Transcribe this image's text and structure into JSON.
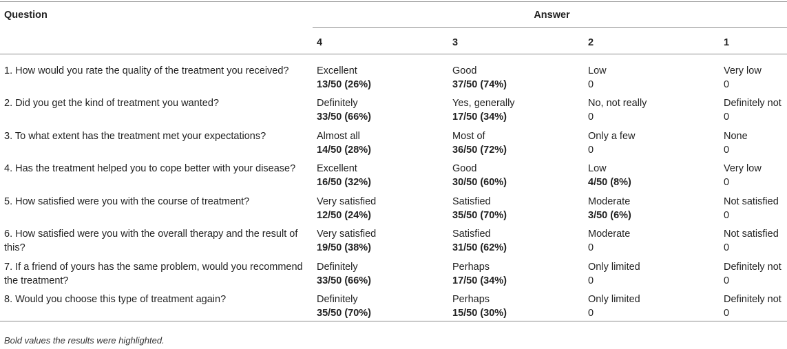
{
  "header": {
    "question": "Question",
    "answer": "Answer",
    "scores": [
      "4",
      "3",
      "2",
      "1"
    ]
  },
  "rows": [
    {
      "question": "1. How would you rate the quality of the treatment you received?",
      "answers": [
        {
          "label": "Excellent",
          "count": "13/50 (26%)",
          "bold": true
        },
        {
          "label": "Good",
          "count": "37/50 (74%)",
          "bold": true
        },
        {
          "label": "Low",
          "count": "0",
          "bold": false
        },
        {
          "label": "Very low",
          "count": "0",
          "bold": false
        }
      ]
    },
    {
      "question": "2. Did you get the kind of treatment you wanted?",
      "answers": [
        {
          "label": "Definitely",
          "count": "33/50 (66%)",
          "bold": true
        },
        {
          "label": "Yes, generally",
          "count": "17/50 (34%)",
          "bold": true
        },
        {
          "label": "No, not really",
          "count": "0",
          "bold": false
        },
        {
          "label": "Definitely not",
          "count": "0",
          "bold": false
        }
      ]
    },
    {
      "question": "3. To what extent has the treatment met your expectations?",
      "answers": [
        {
          "label": "Almost all",
          "count": "14/50 (28%)",
          "bold": true
        },
        {
          "label": "Most of",
          "count": "36/50 (72%)",
          "bold": true
        },
        {
          "label": "Only a few",
          "count": "0",
          "bold": false
        },
        {
          "label": "None",
          "count": "0",
          "bold": false
        }
      ]
    },
    {
      "question": "4. Has the treatment helped you to cope better with your disease?",
      "answers": [
        {
          "label": "Excellent",
          "count": "16/50 (32%)",
          "bold": true
        },
        {
          "label": "Good",
          "count": "30/50 (60%)",
          "bold": true
        },
        {
          "label": "Low",
          "count": "4/50 (8%)",
          "bold": true
        },
        {
          "label": "Very low",
          "count": "0",
          "bold": false
        }
      ]
    },
    {
      "question": "5. How satisfied were you with the course of treatment?",
      "answers": [
        {
          "label": "Very satisfied",
          "count": "12/50 (24%)",
          "bold": true
        },
        {
          "label": "Satisfied",
          "count": "35/50 (70%)",
          "bold": true
        },
        {
          "label": "Moderate",
          "count": "3/50 (6%)",
          "bold": true
        },
        {
          "label": "Not satisfied",
          "count": "0",
          "bold": false
        }
      ]
    },
    {
      "question": "6. How satisfied were you with the overall therapy and the result of this?",
      "answers": [
        {
          "label": "Very satisfied",
          "count": "19/50 (38%)",
          "bold": true
        },
        {
          "label": "Satisfied",
          "count": "31/50 (62%)",
          "bold": true
        },
        {
          "label": "Moderate",
          "count": "0",
          "bold": false
        },
        {
          "label": "Not satisfied",
          "count": "0",
          "bold": false
        }
      ]
    },
    {
      "question": "7. If a friend of yours has the same problem, would you recommend the treatment?",
      "answers": [
        {
          "label": "Definitely",
          "count": "33/50 (66%)",
          "bold": true
        },
        {
          "label": "Perhaps",
          "count": "17/50 (34%)",
          "bold": true
        },
        {
          "label": "Only limited",
          "count": "0",
          "bold": false
        },
        {
          "label": "Definitely not",
          "count": "0",
          "bold": false
        }
      ]
    },
    {
      "question": "8. Would you choose this type of treatment again?",
      "answers": [
        {
          "label": "Definitely",
          "count": "35/50 (70%)",
          "bold": true
        },
        {
          "label": "Perhaps",
          "count": "15/50 (30%)",
          "bold": true
        },
        {
          "label": "Only limited",
          "count": "0",
          "bold": false
        },
        {
          "label": "Definitely not",
          "count": "0",
          "bold": false
        }
      ]
    }
  ],
  "footnote": "Bold values the results were highlighted."
}
